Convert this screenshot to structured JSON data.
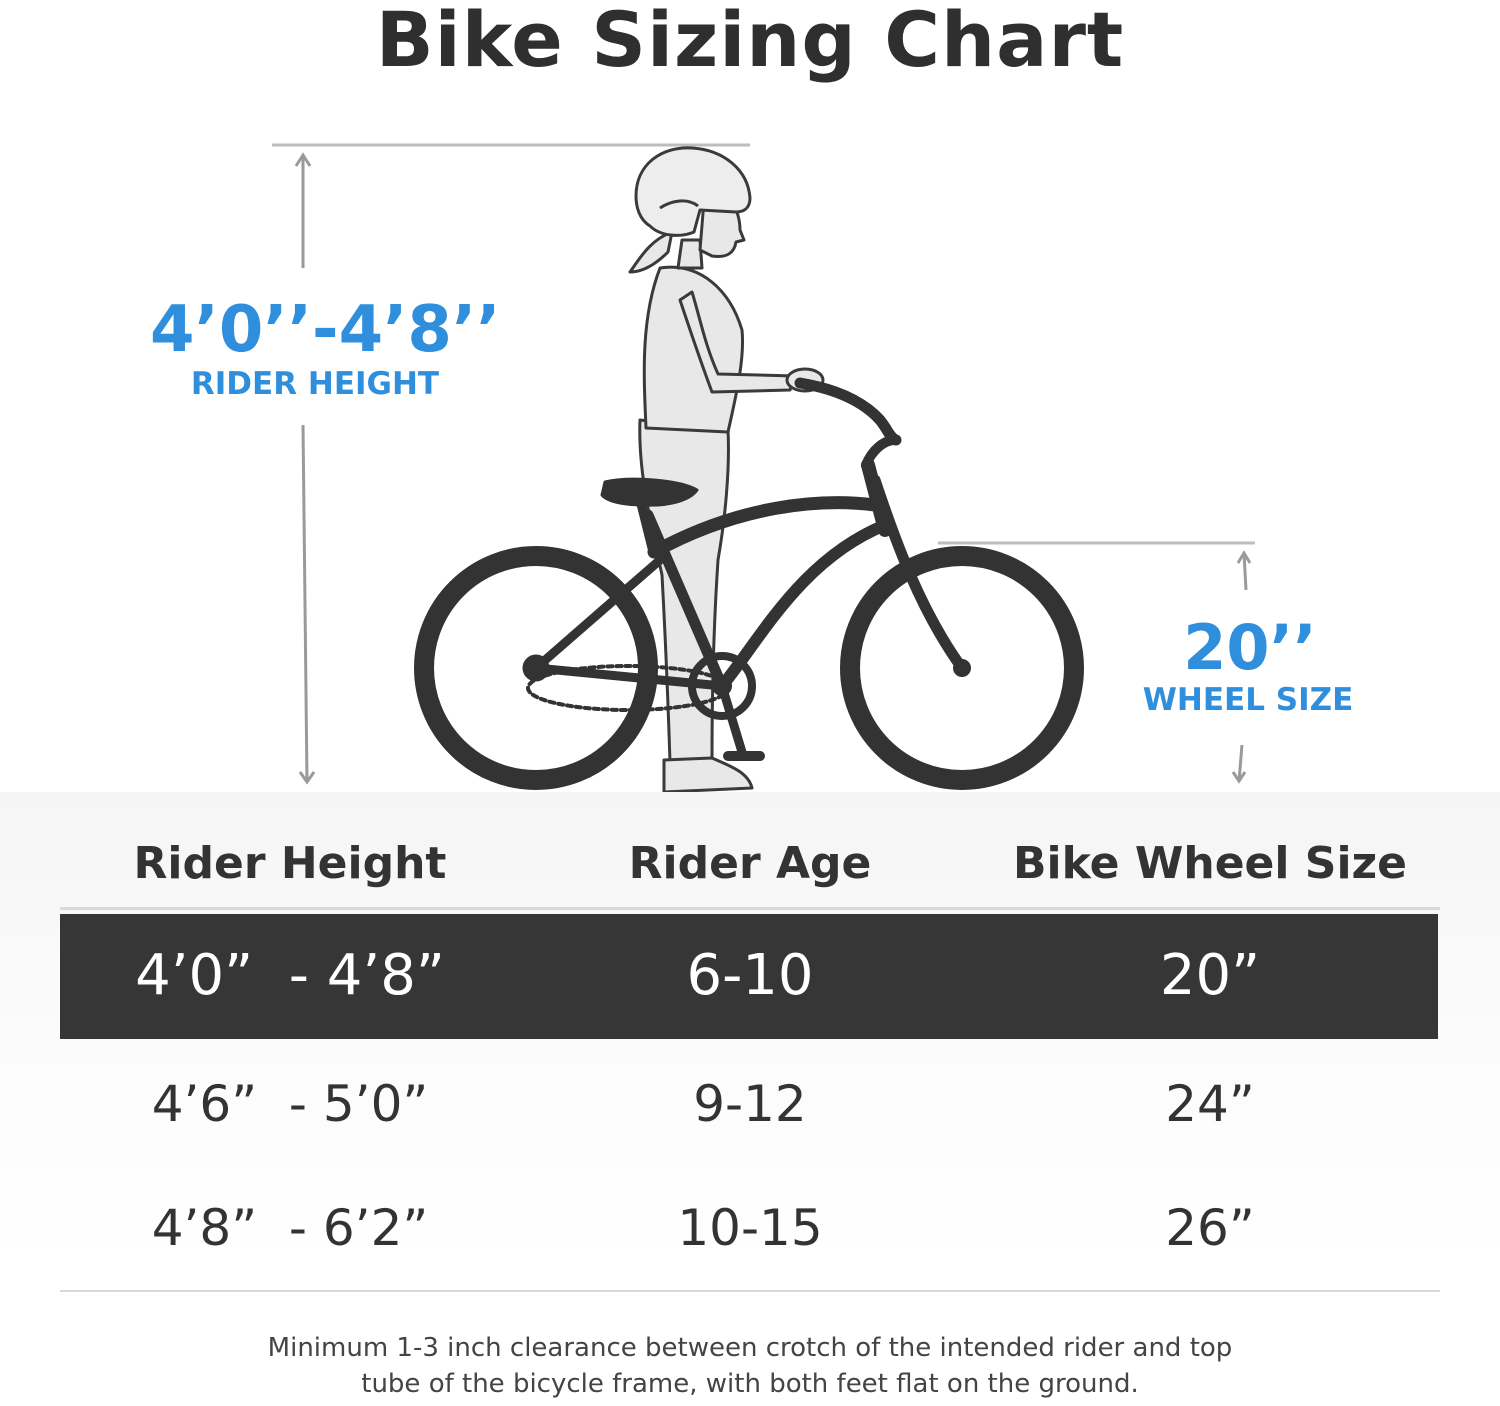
{
  "title": "Bike Sizing Chart",
  "rider_height_callout": {
    "value": "4’0’’-4’8’’",
    "caption": "RIDER HEIGHT"
  },
  "wheel_size_callout": {
    "value": "20’’",
    "caption": "WHEEL SIZE"
  },
  "table": {
    "headers": [
      "Rider Height",
      "Rider Age",
      "Bike Wheel Size"
    ],
    "rows": [
      {
        "height": "4’0”  - 4’8”",
        "age": "6-10",
        "wheel": "20”",
        "highlighted": true
      },
      {
        "height": "4’6”  - 5’0”",
        "age": "9-12",
        "wheel": "24”",
        "highlighted": false
      },
      {
        "height": "4’8”  - 6’2”",
        "age": "10-15",
        "wheel": "26”",
        "highlighted": false
      }
    ]
  },
  "note": "Minimum 1-3 inch clearance between crotch of the intended rider and top tube of the bicycle frame, with both feet flat on the ground.",
  "colors": {
    "accent": "#2f8fdc",
    "highlight_row": "#363636",
    "text": "#333333",
    "bike": "#333333",
    "figure": "#e8e8e8"
  },
  "icons": [
    "girl-with-helmet-illustration",
    "cruiser-bicycle-illustration",
    "up-arrow-icon",
    "down-arrow-icon"
  ]
}
